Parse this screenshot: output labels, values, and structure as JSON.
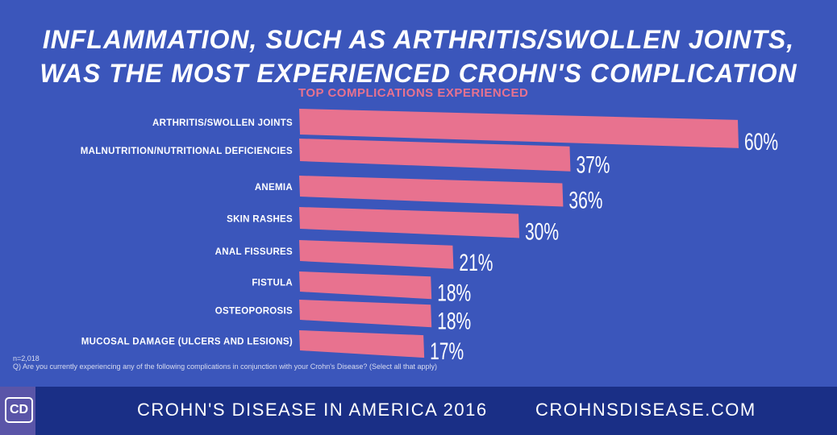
{
  "header": {
    "title_line1": "INFLAMMATION, SUCH AS ARTHRITIS/SWOLLEN JOINTS,",
    "title_line2": "WAS THE MOST EXPERIENCED CROHN'S COMPLICATION"
  },
  "chart_data": {
    "type": "bar",
    "orientation": "horizontal",
    "title": "TOP COMPLICATIONS EXPERIENCED",
    "categories": [
      "ARTHRITIS/SWOLLEN JOINTS",
      "MALNUTRITION/NUTRITIONAL DEFICIENCIES",
      "ANEMIA",
      "SKIN RASHES",
      "ANAL FISSURES",
      "FISTULA",
      "OSTEOPOROSIS",
      "MUCOSAL DAMAGE (ULCERS AND LESIONS)"
    ],
    "values": [
      60,
      37,
      36,
      30,
      21,
      18,
      18,
      17
    ],
    "labels": [
      "60%",
      "37%",
      "36%",
      "30%",
      "21%",
      "18%",
      "18%",
      "17%"
    ],
    "unit": "%",
    "xlim": [
      0,
      60
    ],
    "bar_color": "#e8728f"
  },
  "notes": {
    "n": "n=2,018",
    "question": "Q) Are you currently experiencing any of the following complications in conjunction with your Crohn's Disease? (Select all that apply)"
  },
  "footer": {
    "logo": "CD",
    "left": "CROHN'S DISEASE IN AMERICA 2016",
    "right": "CROHNSDISEASE.COM"
  }
}
